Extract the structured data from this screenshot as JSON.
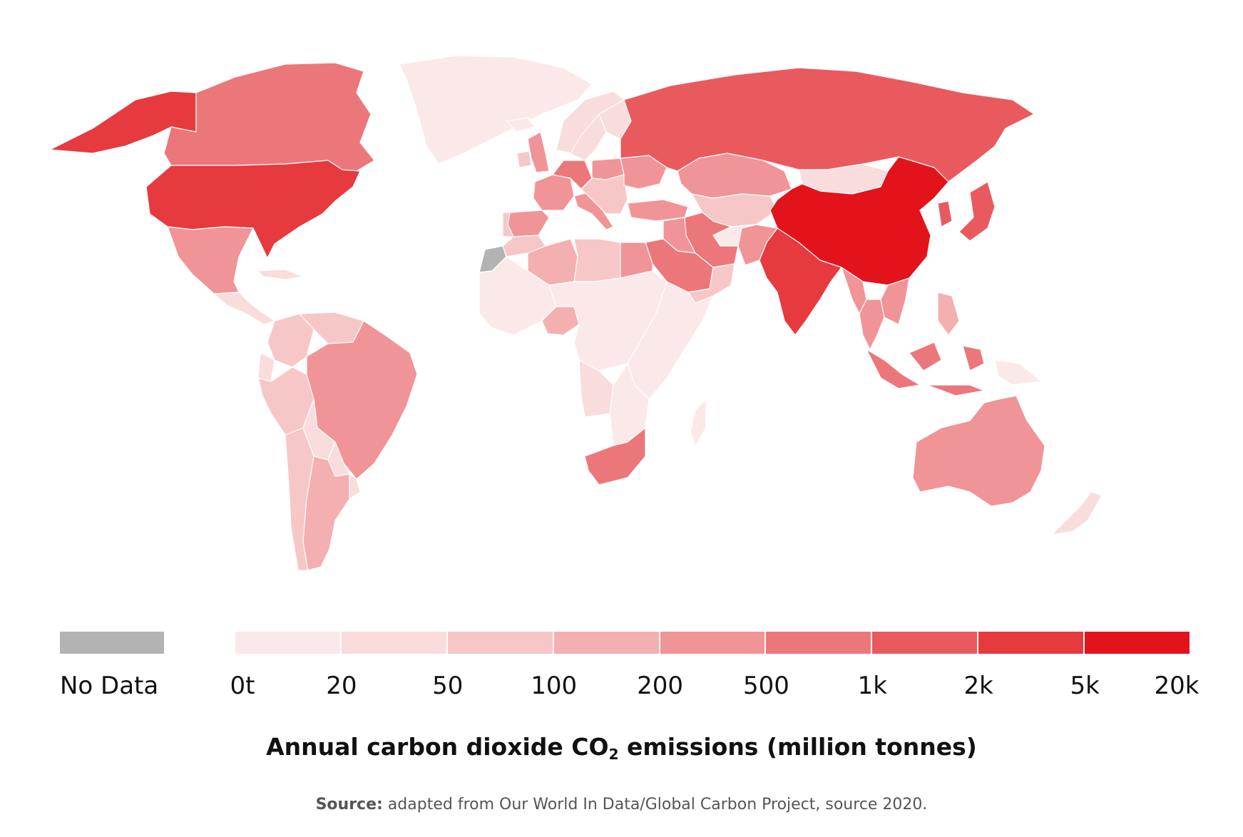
{
  "colors": {
    "no_data": "#b3b3b3",
    "bins": [
      "#fbe9e9",
      "#f9dcdc",
      "#f7c7c7",
      "#f4afb1",
      "#f09497",
      "#ec777b",
      "#e95a5f",
      "#e63a3f",
      "#e3131c"
    ]
  },
  "legend": {
    "no_data_label": "No Data",
    "ticks": [
      "0t",
      "20",
      "50",
      "100",
      "200",
      "500",
      "1k",
      "2k",
      "5k",
      "20k"
    ]
  },
  "title": {
    "prefix": "Annual carbon dioxide CO",
    "subscript": "2",
    "suffix": " emissions (million tonnes)"
  },
  "source": {
    "label": "Source:",
    "text": " adapted from Our World In Data/Global Carbon Project, source 2020."
  },
  "map_data": {
    "type": "choropleth",
    "regions": [
      {
        "name": "Greenland",
        "bin": 0
      },
      {
        "name": "Alaska",
        "bin": 7
      },
      {
        "name": "Canada",
        "bin": 5
      },
      {
        "name": "United States",
        "bin": 7
      },
      {
        "name": "Mexico",
        "bin": 4
      },
      {
        "name": "Central America",
        "bin": 1
      },
      {
        "name": "Cuba",
        "bin": 1
      },
      {
        "name": "Colombia",
        "bin": 2
      },
      {
        "name": "Venezuela",
        "bin": 2
      },
      {
        "name": "Ecuador",
        "bin": 1
      },
      {
        "name": "Peru",
        "bin": 2
      },
      {
        "name": "Brazil",
        "bin": 4
      },
      {
        "name": "Bolivia",
        "bin": 1
      },
      {
        "name": "Paraguay",
        "bin": 1
      },
      {
        "name": "Chile",
        "bin": 2
      },
      {
        "name": "Argentina",
        "bin": 3
      },
      {
        "name": "Uruguay",
        "bin": 1
      },
      {
        "name": "Iceland",
        "bin": 0
      },
      {
        "name": "United Kingdom",
        "bin": 4
      },
      {
        "name": "Ireland",
        "bin": 2
      },
      {
        "name": "Norway",
        "bin": 1
      },
      {
        "name": "Sweden",
        "bin": 1
      },
      {
        "name": "Finland",
        "bin": 1
      },
      {
        "name": "France",
        "bin": 4
      },
      {
        "name": "Spain",
        "bin": 4
      },
      {
        "name": "Portugal",
        "bin": 2
      },
      {
        "name": "Germany",
        "bin": 5
      },
      {
        "name": "Poland",
        "bin": 4
      },
      {
        "name": "Italy",
        "bin": 4
      },
      {
        "name": "Balkans",
        "bin": 2
      },
      {
        "name": "Ukraine",
        "bin": 4
      },
      {
        "name": "Turkey",
        "bin": 4
      },
      {
        "name": "Russia",
        "bin": 6
      },
      {
        "name": "Kazakhstan",
        "bin": 4
      },
      {
        "name": "Central Asia",
        "bin": 2
      },
      {
        "name": "Mongolia",
        "bin": 1
      },
      {
        "name": "China",
        "bin": 8
      },
      {
        "name": "Japan",
        "bin": 6
      },
      {
        "name": "Korea",
        "bin": 6
      },
      {
        "name": "India",
        "bin": 7
      },
      {
        "name": "Pakistan",
        "bin": 4
      },
      {
        "name": "Afghanistan",
        "bin": 0
      },
      {
        "name": "Iran",
        "bin": 5
      },
      {
        "name": "Iraq",
        "bin": 4
      },
      {
        "name": "Saudi Arabia",
        "bin": 5
      },
      {
        "name": "Yemen Oman",
        "bin": 2
      },
      {
        "name": "Western Sahara",
        "bin": -1
      },
      {
        "name": "Morocco",
        "bin": 2
      },
      {
        "name": "Algeria",
        "bin": 3
      },
      {
        "name": "Libya",
        "bin": 2
      },
      {
        "name": "Egypt",
        "bin": 4
      },
      {
        "name": "West Africa",
        "bin": 0
      },
      {
        "name": "Nigeria",
        "bin": 3
      },
      {
        "name": "Central Africa",
        "bin": 0
      },
      {
        "name": "East Africa",
        "bin": 0
      },
      {
        "name": "Angola",
        "bin": 1
      },
      {
        "name": "Southern Africa",
        "bin": 0
      },
      {
        "name": "South Africa",
        "bin": 5
      },
      {
        "name": "Madagascar",
        "bin": 0
      },
      {
        "name": "Southeast Asia",
        "bin": 4
      },
      {
        "name": "Thailand",
        "bin": 4
      },
      {
        "name": "Vietnam",
        "bin": 4
      },
      {
        "name": "Philippines",
        "bin": 3
      },
      {
        "name": "Indonesia",
        "bin": 5
      },
      {
        "name": "Papua New Guinea",
        "bin": 0
      },
      {
        "name": "Australia",
        "bin": 4
      },
      {
        "name": "New Zealand",
        "bin": 1
      }
    ]
  }
}
